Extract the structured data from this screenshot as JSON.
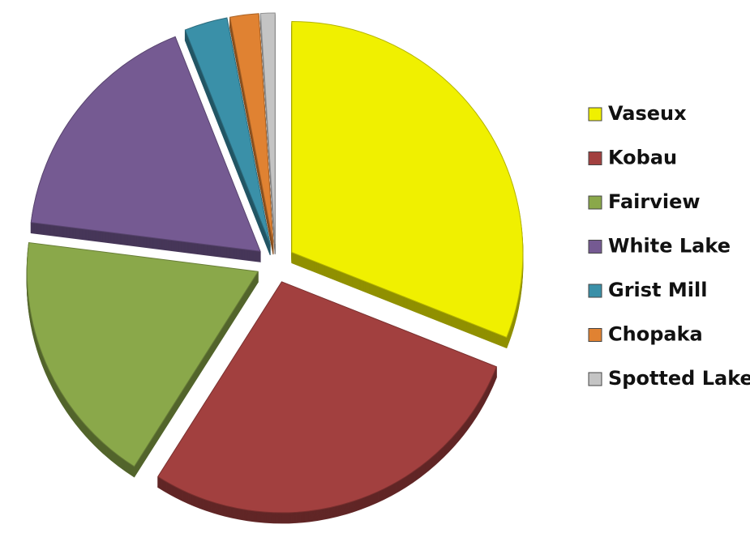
{
  "chart_data": {
    "type": "pie",
    "categories": [
      "Vaseux",
      "Kobau",
      "Fairview",
      "White Lake",
      "Grist Mill",
      "Chopaka",
      "Spotted Lake"
    ],
    "values": [
      31,
      28,
      18,
      17,
      3,
      2,
      1
    ],
    "colors": [
      "#f0f000",
      "#a2403f",
      "#8aa84a",
      "#755a92",
      "#3a90a8",
      "#e08232",
      "#c4c4c4"
    ],
    "legend": "right"
  }
}
